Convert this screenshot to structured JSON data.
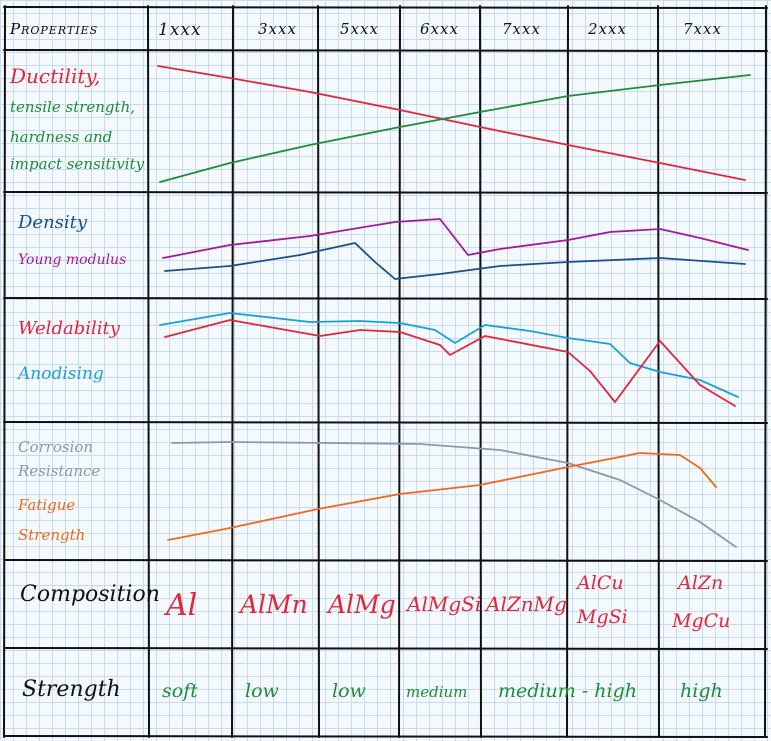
{
  "header": {
    "properties": "Properties",
    "series": [
      "1xxx",
      "3xxx",
      "5xxx",
      "6xxx",
      "7xxx",
      "2xxx",
      "7xxx"
    ]
  },
  "rows": {
    "mechanical": {
      "ductility": "Ductility,",
      "tensile_lines": [
        "tensile strength,",
        "hardness and",
        "impact sensitivity"
      ]
    },
    "density": {
      "density": "Density",
      "young": "Young modulus"
    },
    "weld": {
      "weldability": "Weldability",
      "anodising": "Anodising"
    },
    "corrosion": {
      "corrosion_lines": [
        "Corrosion",
        "Resistance"
      ],
      "fatigue_lines": [
        "Fatigue",
        "Strength"
      ]
    },
    "composition": {
      "label": "Composition",
      "values": [
        "Al",
        "AlMn",
        "AlMg",
        "AlMgSi",
        "AlZnMg",
        [
          "AlCu",
          "MgSi"
        ],
        [
          "AlZn",
          "MgCu"
        ]
      ]
    },
    "strength": {
      "label": "Strength",
      "values": [
        "soft",
        "low",
        "low",
        "medium",
        "medium - high",
        "high"
      ]
    }
  },
  "colors": {
    "red": "#e3263a",
    "green": "#1f8c3a",
    "navy": "#1d4e8c",
    "purple": "#a4199a",
    "cyan": "#1aa0d8",
    "gray": "#8a99a8",
    "orange": "#ee6a1c",
    "ink": "#111111"
  }
}
